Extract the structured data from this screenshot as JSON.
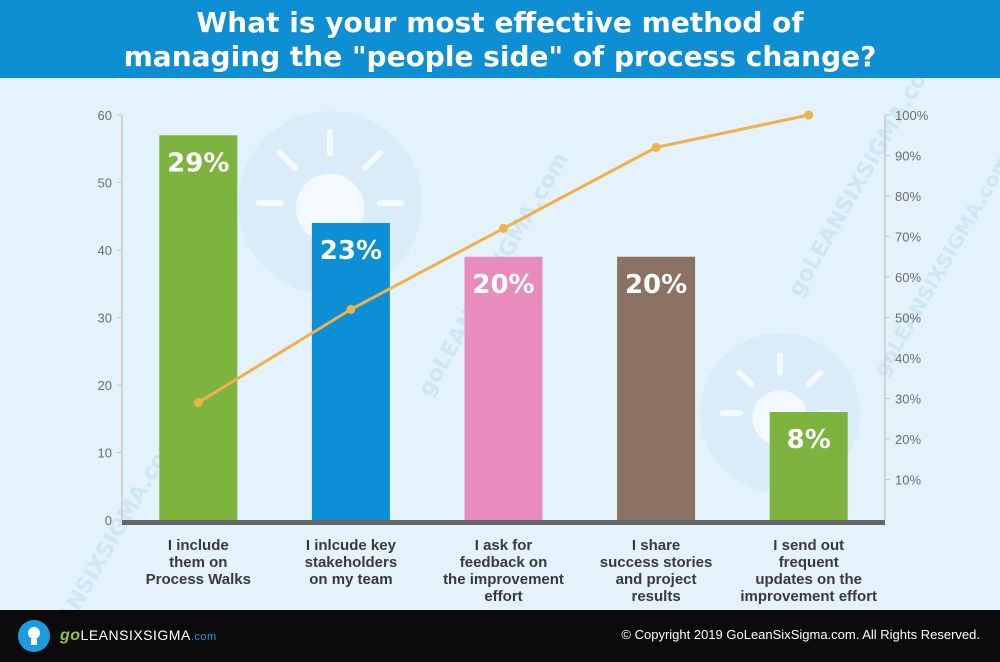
{
  "header": {
    "title_line1": "What is your most effective method of",
    "title_line2": "managing the \"people side\" of process change?"
  },
  "chart_data": {
    "type": "bar",
    "title": "What is your most effective method of managing the \"people side\" of process change?",
    "categories": [
      [
        "I include",
        "them on",
        "Process Walks"
      ],
      [
        "I inlcude key",
        "stakeholders",
        "on my team"
      ],
      [
        "I ask for",
        "feedback on",
        "the improvement",
        "effort"
      ],
      [
        "I share",
        "success stories",
        "and project",
        "results"
      ],
      [
        "I send out",
        "frequent",
        "updates on the",
        "improvement effort"
      ]
    ],
    "values": [
      57,
      44,
      39,
      39,
      16
    ],
    "data_labels": [
      "29%",
      "23%",
      "20%",
      "20%",
      "8%"
    ],
    "bar_colors": [
      "#7db33f",
      "#0d8fd5",
      "#e88cbd",
      "#8c7263",
      "#7db33f"
    ],
    "ylim": [
      0,
      60
    ],
    "yticks": [
      "0",
      "10",
      "20",
      "30",
      "40",
      "50",
      "60"
    ],
    "y2lim": [
      0,
      100
    ],
    "y2ticks": [
      "10%",
      "20%",
      "30%",
      "40%",
      "50%",
      "60%",
      "70%",
      "80%",
      "90%",
      "100%"
    ],
    "cumulative_line": {
      "values": [
        29,
        52,
        72,
        92,
        100
      ],
      "color": "#f0b04a"
    },
    "grid": false,
    "axis_color": "#666666"
  },
  "watermark": {
    "text": "goLEANSIXSIGMA.com"
  },
  "footer": {
    "logo_go": "go",
    "logo_name": "LEANSIXSIGMA",
    "logo_domain": ".com",
    "copyright": "© Copyright 2019 GoLeanSixSigma.com. All Rights Reserved."
  },
  "colors": {
    "header_bg": "#0e8fd4",
    "background": "#e3f2fb",
    "footer_bg": "#0b0b0b"
  }
}
